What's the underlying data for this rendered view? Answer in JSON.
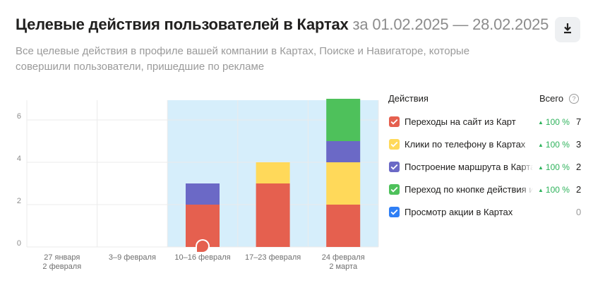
{
  "header": {
    "title": "Целевые действия пользователей в Картах",
    "period": "за 01.02.2025 — 28.02.2025",
    "subtitle": "Все целевые действия в профиле вашей компании в Картах, Поиске и Навигаторе, которые совершили пользователи, пришедшие по рекламе",
    "download_icon": "download-icon"
  },
  "chart_data": {
    "type": "bar",
    "stacked": true,
    "categories": [
      [
        "27 января",
        "2 февраля"
      ],
      [
        "3–9 февраля"
      ],
      [
        "10–16 февраля"
      ],
      [
        "17–23 февраля"
      ],
      [
        "24 февраля",
        "2 марта"
      ]
    ],
    "highlighted_categories": [
      2,
      3,
      4
    ],
    "ylim": [
      0,
      7
    ],
    "yticks": [
      0,
      2,
      4,
      6
    ],
    "grid": true,
    "legend_position": "right",
    "series": [
      {
        "name": "Переходы на сайт из Карт",
        "color": "#e5604f",
        "values": [
          0,
          0,
          2,
          3,
          2
        ]
      },
      {
        "name": "Клики по телефону в Картах",
        "color": "#ffd95a",
        "values": [
          0,
          0,
          0,
          1,
          2
        ]
      },
      {
        "name": "Построение маршрута в Картах",
        "color": "#6b69c6",
        "values": [
          0,
          0,
          1,
          0,
          1
        ]
      },
      {
        "name": "Переход по кнопке действия из Карт",
        "color": "#4ec15b",
        "values": [
          0,
          0,
          0,
          0,
          2
        ]
      }
    ],
    "annotation_marker_category": 2,
    "highlight_color": "#d6eefb",
    "marker_color": "#e5604f"
  },
  "legend": {
    "header_actions": "Действия",
    "header_total": "Всего",
    "help_icon": "?",
    "rows": [
      {
        "label": "Переходы на сайт из Карт",
        "color": "#e5604f",
        "trend": "100 %",
        "total": "7"
      },
      {
        "label": "Клики по телефону в Картах",
        "color": "#ffd95a",
        "trend": "100 %",
        "total": "3"
      },
      {
        "label": "Построение маршрута в Картах",
        "color": "#6b69c6",
        "trend": "100 %",
        "total": "2"
      },
      {
        "label": "Переход по кнопке действия из Карт",
        "color": "#4ec15b",
        "trend": "100 %",
        "total": "2"
      },
      {
        "label": "Просмотр акции в Картах",
        "color": "#2f7ff5",
        "trend": "",
        "total": "0"
      }
    ]
  }
}
